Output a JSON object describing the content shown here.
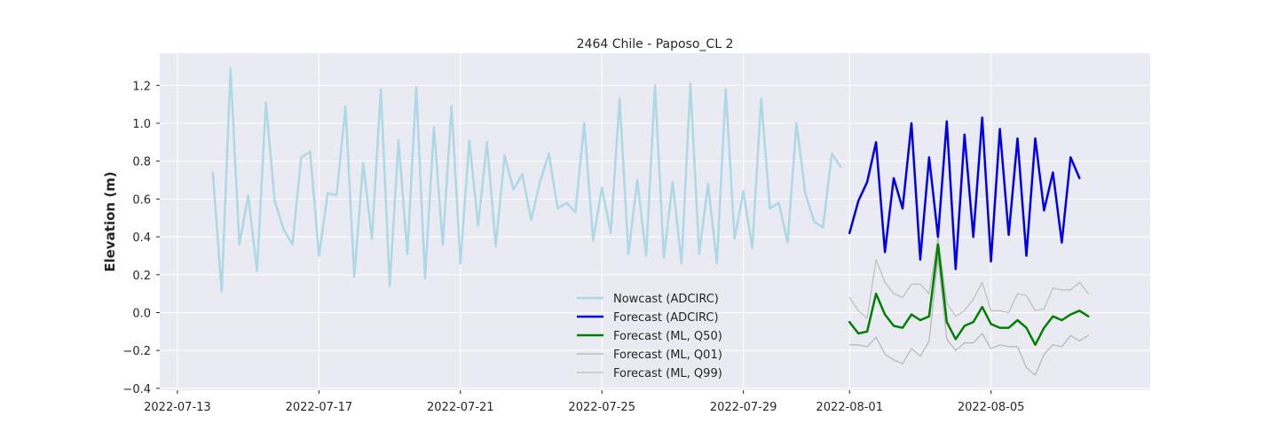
{
  "chart_data": {
    "type": "line",
    "title": "2464 Chile - Paposo_CL 2",
    "xlabel": "",
    "ylabel": "Elevation (m)",
    "xlim": [
      "2022-07-12T12:00",
      "2022-08-09T12:00"
    ],
    "ylim": [
      -0.41,
      1.37
    ],
    "x_ticks": [
      "2022-07-13",
      "2022-07-17",
      "2022-07-21",
      "2022-07-25",
      "2022-07-29",
      "2022-08-01",
      "2022-08-05"
    ],
    "y_ticks": [
      -0.4,
      -0.2,
      0.0,
      0.2,
      0.4,
      0.6,
      0.8,
      1.0,
      1.2
    ],
    "y_tick_labels": [
      "−0.4",
      "−0.2",
      "0.0",
      "0.2",
      "0.4",
      "0.6",
      "0.8",
      "1.0",
      "1.2"
    ],
    "grid": true,
    "legend_position": "lower-center",
    "series": [
      {
        "name": "Nowcast (ADCIRC)",
        "color": "#add8e6",
        "width": 2.5,
        "start": "2022-07-14T00:00",
        "step_hours": 6,
        "values": [
          0.74,
          0.11,
          1.29,
          0.36,
          0.62,
          0.22,
          1.11,
          0.59,
          0.44,
          0.36,
          0.82,
          0.85,
          0.3,
          0.63,
          0.62,
          1.09,
          0.19,
          0.79,
          0.39,
          1.18,
          0.14,
          0.91,
          0.31,
          1.19,
          0.18,
          0.98,
          0.36,
          1.09,
          0.26,
          0.91,
          0.46,
          0.9,
          0.35,
          0.83,
          0.65,
          0.73,
          0.49,
          0.69,
          0.84,
          0.55,
          0.58,
          0.53,
          1.0,
          0.38,
          0.66,
          0.42,
          1.13,
          0.31,
          0.7,
          0.3,
          1.2,
          0.29,
          0.69,
          0.26,
          1.21,
          0.31,
          0.68,
          0.26,
          1.18,
          0.39,
          0.64,
          0.34,
          1.13,
          0.55,
          0.58,
          0.37,
          1.0,
          0.63,
          0.48,
          0.45,
          0.84,
          0.77
        ]
      },
      {
        "name": "Forecast (ADCIRC)",
        "color": "#0000ee",
        "width": 2.5,
        "start": "2022-08-01T00:00",
        "step_hours": 6,
        "values": [
          0.42,
          0.59,
          0.69,
          0.9,
          0.32,
          0.71,
          0.55,
          1.0,
          0.28,
          0.82,
          0.4,
          1.01,
          0.23,
          0.94,
          0.4,
          1.03,
          0.27,
          0.97,
          0.41,
          0.92,
          0.3,
          0.92,
          0.54,
          0.74,
          0.37,
          0.82,
          0.71
        ]
      },
      {
        "name": "Forecast (ML, Q50)",
        "color": "#008000",
        "width": 2.5,
        "start": "2022-08-01T00:00",
        "step_hours": 6,
        "values": [
          -0.05,
          -0.11,
          -0.1,
          0.1,
          -0.01,
          -0.07,
          -0.08,
          -0.01,
          -0.04,
          -0.02,
          0.36,
          -0.05,
          -0.14,
          -0.07,
          -0.05,
          0.03,
          -0.06,
          -0.08,
          -0.08,
          -0.04,
          -0.08,
          -0.17,
          -0.08,
          -0.02,
          -0.04,
          -0.01,
          0.01,
          -0.02
        ]
      },
      {
        "name": "Forecast (ML, Q01)",
        "color": "#b5b5b5",
        "width": 1.2,
        "start": "2022-08-01T00:00",
        "step_hours": 6,
        "values": [
          -0.17,
          -0.17,
          -0.18,
          -0.13,
          -0.22,
          -0.25,
          -0.27,
          -0.19,
          -0.23,
          -0.15,
          0.29,
          -0.14,
          -0.2,
          -0.16,
          -0.16,
          -0.11,
          -0.19,
          -0.17,
          -0.18,
          -0.18,
          -0.29,
          -0.33,
          -0.22,
          -0.17,
          -0.18,
          -0.12,
          -0.15,
          -0.12
        ]
      },
      {
        "name": "Forecast (ML, Q99)",
        "color": "#bdbdbd",
        "width": 1.2,
        "start": "2022-08-01T00:00",
        "step_hours": 6,
        "values": [
          0.08,
          0.01,
          -0.03,
          0.28,
          0.16,
          0.1,
          0.08,
          0.15,
          0.15,
          0.1,
          0.4,
          0.05,
          -0.02,
          0.01,
          0.07,
          0.16,
          0.01,
          0.01,
          0.0,
          0.1,
          0.09,
          0.01,
          0.02,
          0.13,
          0.12,
          0.12,
          0.16,
          0.1
        ]
      }
    ]
  }
}
